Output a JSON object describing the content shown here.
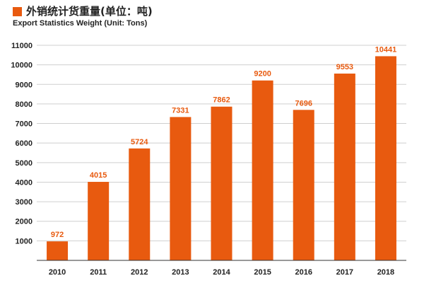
{
  "chart_data": {
    "type": "bar",
    "title": "外销统计货重量(单位：吨)",
    "subtitle": "Export Statistics Weight (Unit: Tons)",
    "categories": [
      "2010",
      "2011",
      "2012",
      "2013",
      "2014",
      "2015",
      "2016",
      "2017",
      "2018"
    ],
    "values": [
      972,
      4015,
      5724,
      7331,
      7862,
      9200,
      7696,
      9553,
      10441
    ],
    "yticks": [
      "1000",
      "2000",
      "3000",
      "4000",
      "5000",
      "6000",
      "7000",
      "8000",
      "9000",
      "10000",
      "11000"
    ],
    "ylim": [
      0,
      11000
    ],
    "xlabel": "",
    "ylabel": "",
    "grid": true,
    "legend": "none",
    "bar_color": "#E85A0F",
    "label_color": "#E85A0F",
    "grid_color": "#CFCFCF",
    "axis_color": "#333333",
    "text_color": "#222222"
  }
}
